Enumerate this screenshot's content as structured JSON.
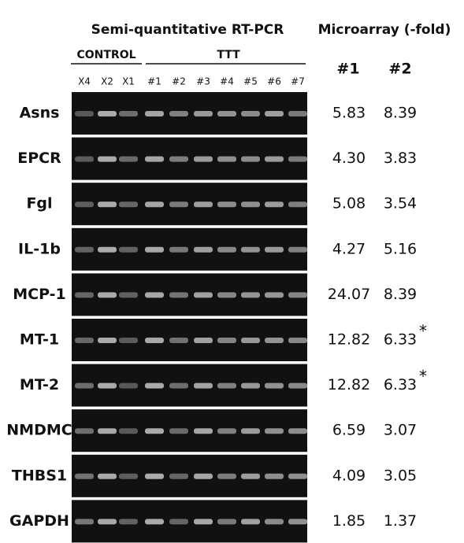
{
  "header": {
    "rtpcr_title": "Semi-quantitative RT-PCR",
    "microarray_title": "Microarray (-fold)",
    "control_label": "CONTROL",
    "ttt_label": "TTT",
    "col1": "#1",
    "col2": "#2"
  },
  "lanes": [
    "X4",
    "X2",
    "X1",
    "#1",
    "#2",
    "#3",
    "#4",
    "#5",
    "#6",
    "#7"
  ],
  "rows": [
    {
      "gene": "Asns",
      "fold1": "5.83",
      "fold2": "8.39"
    },
    {
      "gene": "EPCR",
      "fold1": "4.30",
      "fold2": "3.83"
    },
    {
      "gene": "Fgl",
      "fold1": "5.08",
      "fold2": "3.54"
    },
    {
      "gene": "IL-1b",
      "fold1": "4.27",
      "fold2": "5.16"
    },
    {
      "gene": "MCP-1",
      "fold1": "24.07",
      "fold2": "8.39"
    },
    {
      "gene": "MT-1",
      "fold1": "12.82",
      "fold2": "6.33",
      "note": "*"
    },
    {
      "gene": "MT-2",
      "fold1": "12.82",
      "fold2": "6.33",
      "note": "*"
    },
    {
      "gene": "NMDMC",
      "fold1": "6.59",
      "fold2": "3.07"
    },
    {
      "gene": "THBS1",
      "fold1": "4.09",
      "fold2": "3.05"
    },
    {
      "gene": "GAPDH",
      "fold1": "1.85",
      "fold2": "1.37"
    }
  ]
}
